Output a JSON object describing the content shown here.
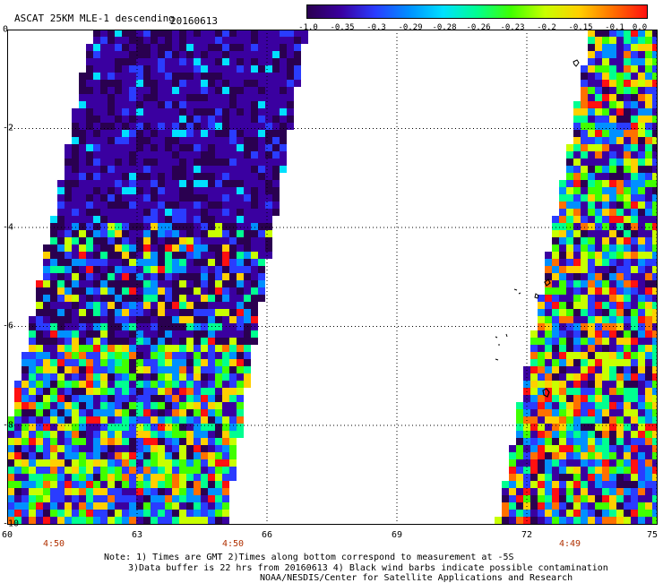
{
  "header": {
    "title": "ASCAT 25KM MLE-1 descending",
    "date": "20160613"
  },
  "colorbar": {
    "labels": [
      "-1.0",
      "-0.35",
      "-0.3",
      "-0.29",
      "-0.28",
      "-0.26",
      "-0.23",
      "-0.2",
      "-0.15",
      "-0.1",
      "0.0"
    ],
    "colors": [
      "#2a0050",
      "#3a00a0",
      "#2a3cff",
      "#0090ff",
      "#00e0ff",
      "#00ff90",
      "#40ff00",
      "#c8ff00",
      "#ffd000",
      "#ff7000",
      "#ff1010"
    ]
  },
  "axes": {
    "y_ticks": [
      "0",
      "-2",
      "-4",
      "-6",
      "-8",
      "-10"
    ],
    "x_ticks": [
      "60",
      "63",
      "66",
      "69",
      "72",
      "75"
    ],
    "time_labels": [
      "4:50",
      "4:50",
      "4:49"
    ]
  },
  "notes": {
    "line1": "Note: 1) Times are GMT 2)Times along bottom correspond to measurement at -5S",
    "line2": "3)Data buffer is 22 hrs from 20160613 4) Black wind barbs indicate possible contamination",
    "line3": "NOAA/NESDIS/Center for Satellite Applications and Research"
  }
}
